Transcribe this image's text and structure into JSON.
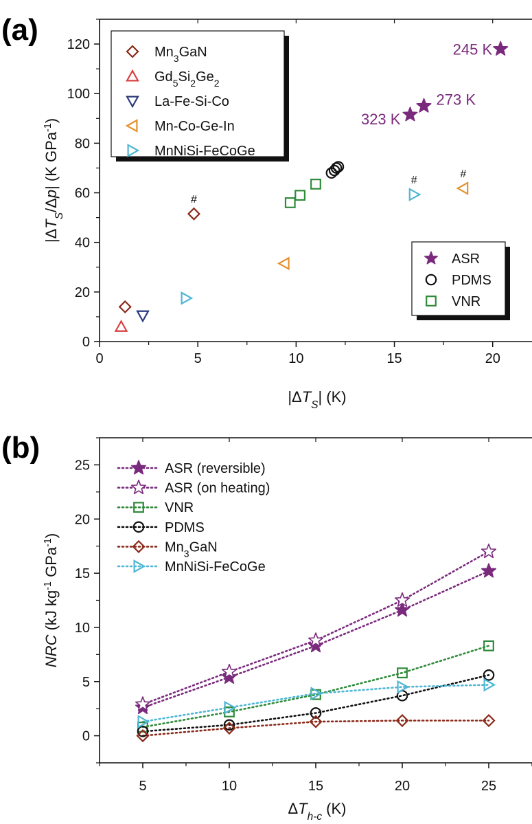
{
  "colors": {
    "asr": "#7a2a7d",
    "mn3gan": "#8b2a1a",
    "gd5si2ge2": "#d94040",
    "lafesico": "#2a3b7d",
    "mncogein": "#e6902e",
    "mnnisi": "#4fb6d4",
    "pdms": "#111111",
    "vnr": "#2e8b3a"
  },
  "chart_data": [
    {
      "type": "scatter",
      "panel_label": "(a)",
      "xlabel_parts": [
        "|Δ",
        "T",
        "S",
        "| (K)"
      ],
      "ylabel_parts": [
        "|Δ",
        "T",
        "S",
        "/Δ",
        "p",
        "| (K GPa",
        "-1",
        ")"
      ],
      "xlim": [
        0,
        22
      ],
      "ylim": [
        0,
        130
      ],
      "x_ticks": [
        0,
        5,
        10,
        15,
        20
      ],
      "y_ticks": [
        0,
        20,
        40,
        60,
        80,
        100,
        120
      ],
      "legend_materials": {
        "position": "top-left",
        "entries": [
          {
            "key": "mn3gan",
            "parts": [
              [
                "Mn",
                0
              ],
              [
                "3",
                1
              ],
              [
                "GaN",
                0
              ]
            ],
            "marker": "diamond",
            "color": "#8b2a1a"
          },
          {
            "key": "gd5si2ge2",
            "parts": [
              [
                "Gd",
                0
              ],
              [
                "5",
                1
              ],
              [
                "Si",
                0
              ],
              [
                "2",
                1
              ],
              [
                "Ge",
                0
              ],
              [
                "2",
                1
              ]
            ],
            "marker": "triangle-up",
            "color": "#d94040"
          },
          {
            "key": "lafesico",
            "parts": [
              [
                "La-Fe-Si-Co",
                0
              ]
            ],
            "marker": "triangle-down",
            "color": "#2a3b7d"
          },
          {
            "key": "mncogein",
            "parts": [
              [
                "Mn-Co-Ge-In",
                0
              ]
            ],
            "marker": "triangle-left",
            "color": "#e6902e"
          },
          {
            "key": "mnnisi",
            "parts": [
              [
                "MnNiSi-FeCoGe",
                0
              ]
            ],
            "marker": "triangle-right",
            "color": "#4fb6d4"
          }
        ]
      },
      "legend_polymers": {
        "position": "bottom-right",
        "entries": [
          {
            "key": "asr",
            "label": "ASR",
            "marker": "star-filled",
            "color": "#7a2a7d"
          },
          {
            "key": "pdms",
            "label": "PDMS",
            "marker": "circle",
            "color": "#111111"
          },
          {
            "key": "vnr",
            "label": "VNR",
            "marker": "square",
            "color": "#2e8b3a"
          }
        ]
      },
      "series": [
        {
          "key": "mn3gan",
          "marker": "diamond",
          "color": "#8b2a1a",
          "points": [
            [
              1.3,
              14
            ],
            [
              4.8,
              51.5
            ]
          ]
        },
        {
          "key": "gd5si2ge2",
          "marker": "triangle-up",
          "color": "#d94040",
          "points": [
            [
              1.1,
              6
            ]
          ]
        },
        {
          "key": "lafesico",
          "marker": "triangle-down",
          "color": "#2a3b7d",
          "points": [
            [
              2.2,
              10.5
            ]
          ]
        },
        {
          "key": "mncogein",
          "marker": "triangle-left",
          "color": "#e6902e",
          "points": [
            [
              9.4,
              31.5
            ],
            [
              18.5,
              61.8
            ]
          ]
        },
        {
          "key": "mnnisi",
          "marker": "triangle-right",
          "color": "#4fb6d4",
          "points": [
            [
              4.4,
              17.5
            ],
            [
              16.0,
              59.3
            ]
          ]
        },
        {
          "key": "vnr",
          "marker": "square",
          "color": "#2e8b3a",
          "points": [
            [
              9.7,
              56
            ],
            [
              10.2,
              59
            ],
            [
              11.0,
              63.5
            ]
          ]
        },
        {
          "key": "pdms",
          "marker": "circle",
          "color": "#111111",
          "points": [
            [
              11.8,
              68
            ],
            [
              11.95,
              69
            ],
            [
              12.05,
              70
            ],
            [
              12.15,
              70.5
            ]
          ]
        },
        {
          "key": "asr",
          "marker": "star-filled",
          "color": "#7a2a7d",
          "points": [
            [
              15.8,
              91.5
            ],
            [
              16.5,
              95
            ],
            [
              20.4,
              118
            ]
          ]
        }
      ],
      "annotations": [
        {
          "text": "245 K",
          "x": 20.4,
          "y": 118,
          "anchor": "end",
          "dx": -12,
          "dy": 8
        },
        {
          "text": "273 K",
          "x": 16.5,
          "y": 95,
          "anchor": "start",
          "dx": 18,
          "dy": -2
        },
        {
          "text": "323 K",
          "x": 15.8,
          "y": 91.5,
          "anchor": "end",
          "dx": -14,
          "dy": 14
        }
      ],
      "hash_marks": [
        {
          "text": "#",
          "x": 4.8,
          "y": 51.5
        },
        {
          "text": "#",
          "x": 16.0,
          "y": 59.3
        },
        {
          "text": "#",
          "x": 18.5,
          "y": 61.8
        }
      ]
    },
    {
      "type": "line",
      "panel_label": "(b)",
      "xlabel_parts": [
        "Δ",
        "T",
        "h-c",
        " (K)"
      ],
      "ylabel_parts": [
        "NRC",
        " (kJ kg",
        "-1",
        " GPa",
        "-1",
        ")"
      ],
      "xlim": [
        2.5,
        27.5
      ],
      "ylim": [
        -2.5,
        27.5
      ],
      "x_ticks": [
        5,
        10,
        15,
        20,
        25
      ],
      "y_ticks": [
        0,
        5,
        10,
        15,
        20,
        25
      ],
      "x": [
        5,
        10,
        15,
        20,
        25
      ],
      "legend": {
        "position": "top-left",
        "entries": [
          {
            "key": "asr_rev",
            "parts": [
              [
                "ASR (reversible)",
                0
              ]
            ]
          },
          {
            "key": "asr_heat",
            "parts": [
              [
                "ASR (on heating)",
                0
              ]
            ]
          },
          {
            "key": "vnr",
            "parts": [
              [
                "VNR",
                0
              ]
            ]
          },
          {
            "key": "pdms",
            "parts": [
              [
                "PDMS",
                0
              ]
            ]
          },
          {
            "key": "mn3gan",
            "parts": [
              [
                "Mn",
                0
              ],
              [
                "3",
                1
              ],
              [
                "GaN",
                0
              ]
            ]
          },
          {
            "key": "mnnisi",
            "parts": [
              [
                "MnNiSi-FeCoGe",
                0
              ]
            ]
          }
        ]
      },
      "series": [
        {
          "key": "asr_rev",
          "marker": "star-filled",
          "color": "#7a2a7d",
          "values": [
            2.6,
            5.4,
            8.3,
            11.6,
            15.2
          ]
        },
        {
          "key": "asr_heat",
          "marker": "star-open",
          "color": "#7a2a7d",
          "values": [
            2.9,
            5.9,
            8.8,
            12.5,
            17.0
          ]
        },
        {
          "key": "vnr",
          "marker": "square",
          "color": "#2e8b3a",
          "values": [
            0.8,
            2.2,
            3.8,
            5.8,
            8.3
          ]
        },
        {
          "key": "pdms",
          "marker": "circle",
          "color": "#111111",
          "values": [
            0.4,
            1.0,
            2.1,
            3.7,
            5.6
          ]
        },
        {
          "key": "mn3gan",
          "marker": "diamond",
          "color": "#8b2a1a",
          "values": [
            0.0,
            0.7,
            1.3,
            1.4,
            1.4
          ]
        },
        {
          "key": "mnnisi",
          "marker": "triangle-right",
          "color": "#4fb6d4",
          "values": [
            1.3,
            2.6,
            3.9,
            4.5,
            4.7
          ]
        }
      ]
    }
  ]
}
